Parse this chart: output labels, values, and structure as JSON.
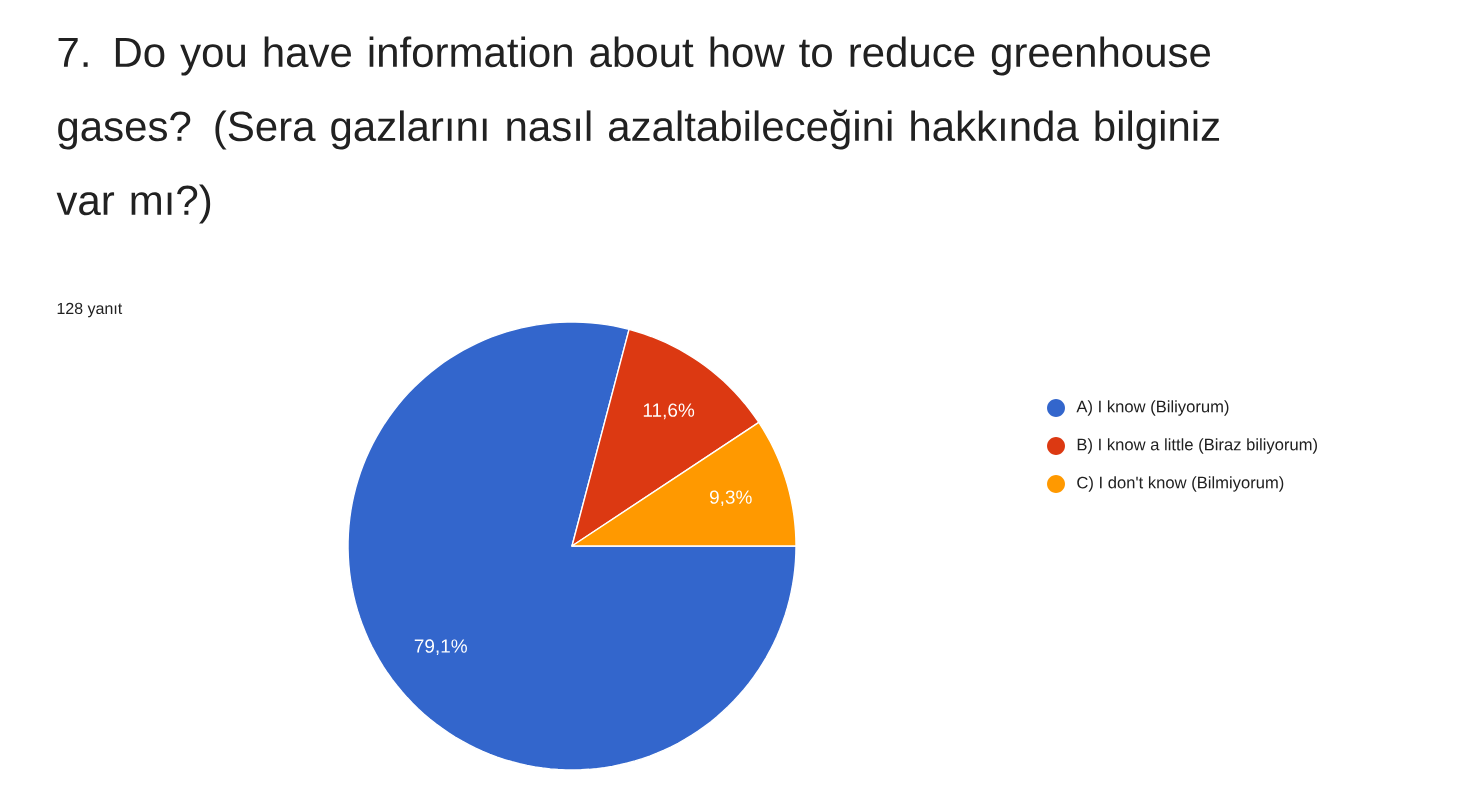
{
  "chart_data": {
    "type": "pie",
    "title": "7. Do you have information about how to reduce greenhouse gases? (Sera gazlarını nasıl azaltabileceğini hakkında bilginiz var mı?)",
    "subtitle": "128 yanıt",
    "categories": [
      "A) I know (Biliyorum)",
      "B) I know a little (Biraz biliyorum)",
      "C) I don't know (Bilmiyorum)"
    ],
    "values": [
      79.1,
      11.6,
      9.3
    ],
    "colors": [
      "#3366cc",
      "#dc3912",
      "#ff9900"
    ],
    "value_labels": [
      "79,1%",
      "11,6%",
      "9,3%"
    ],
    "legend": "right"
  }
}
